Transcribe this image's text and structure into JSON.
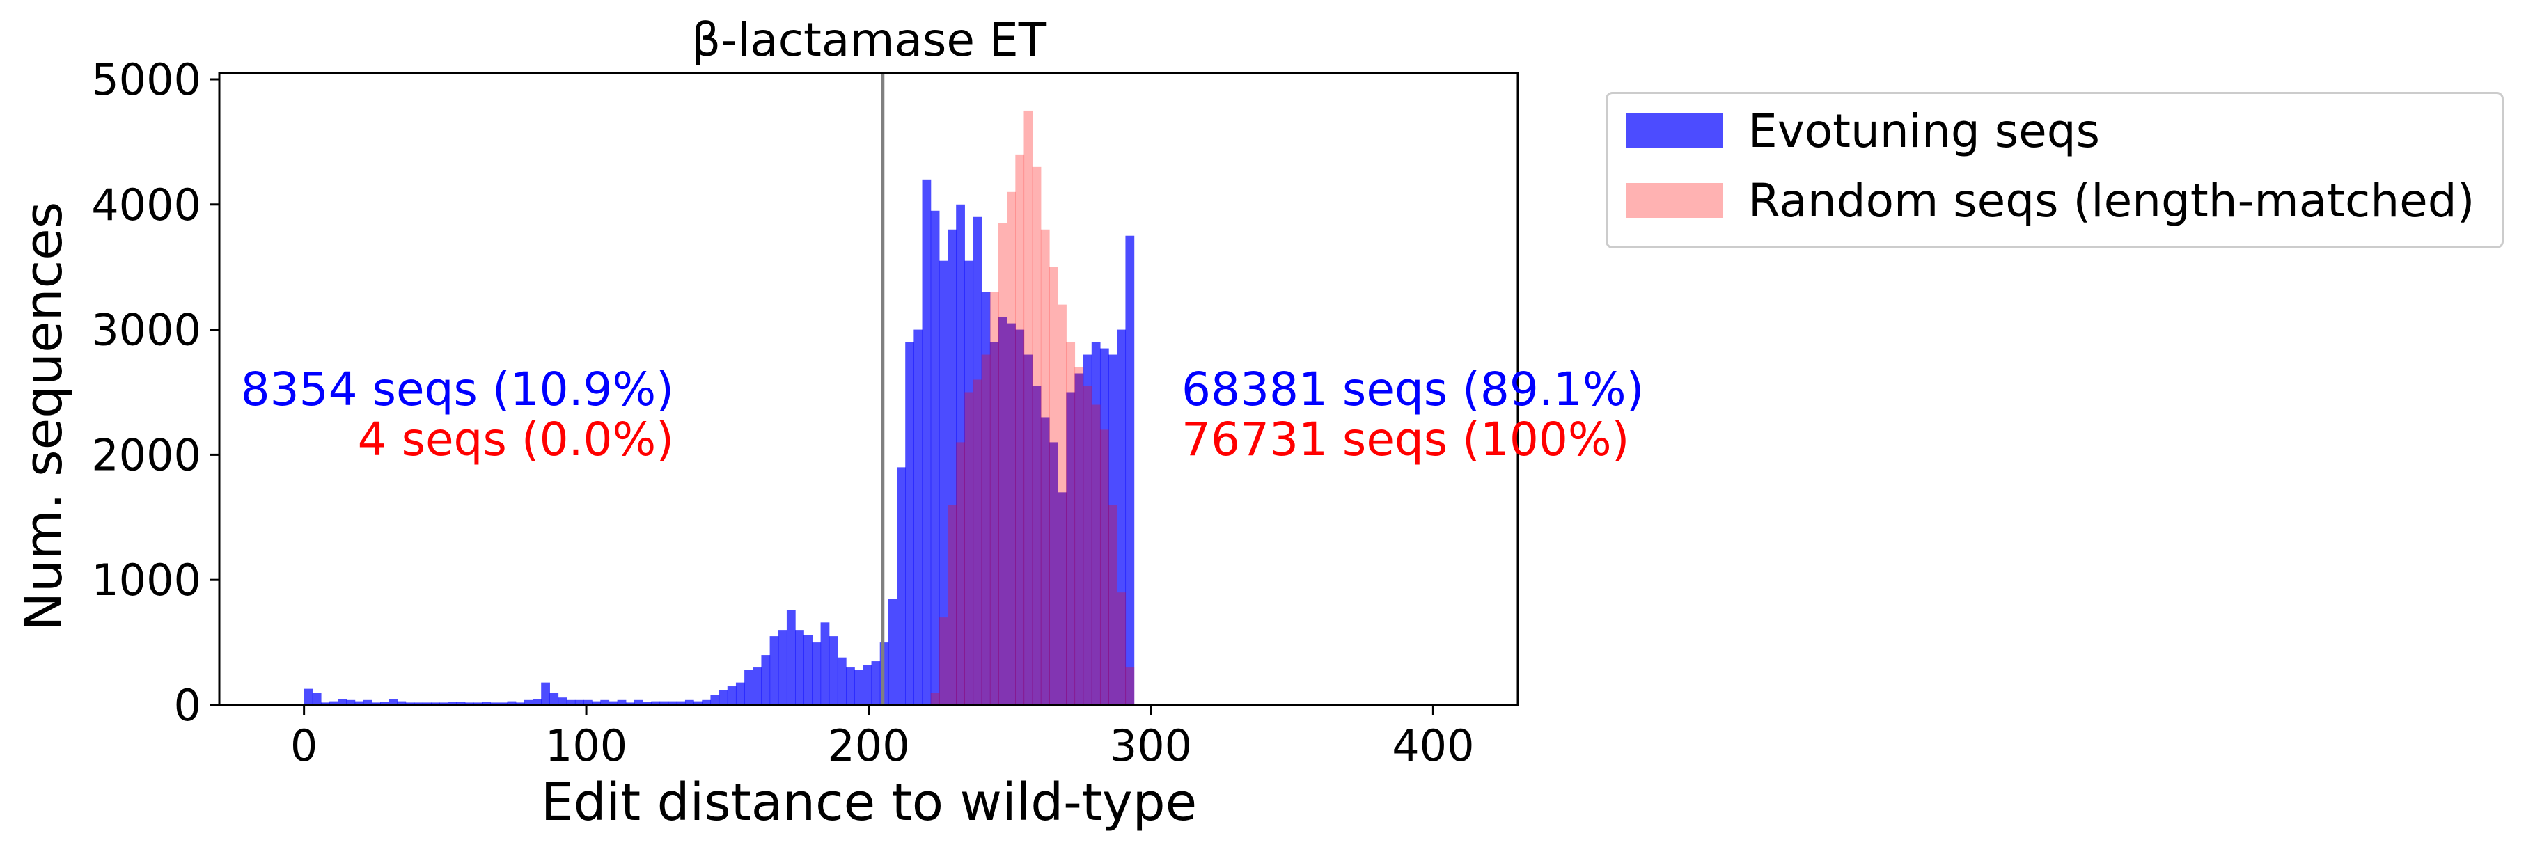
{
  "chart_data": {
    "type": "bar",
    "title": "β-lactamase ET",
    "xlabel": "Edit distance to wild-type",
    "ylabel": "Num. sequences",
    "xlim": [
      -30,
      430
    ],
    "ylim": [
      0,
      5050
    ],
    "x_ticks": [
      0,
      100,
      200,
      300,
      400
    ],
    "y_ticks": [
      0,
      1000,
      2000,
      3000,
      4000,
      5000
    ],
    "x_tick_labels": [
      "0",
      "100",
      "200",
      "300",
      "400"
    ],
    "y_tick_labels": [
      "0",
      "1000",
      "2000",
      "3000",
      "4000",
      "5000"
    ],
    "bin_width": 3,
    "grid": false,
    "legend_position": "outside-right-top",
    "vline_x": 205,
    "series": [
      {
        "name": "Evotuning seqs",
        "color": "#0000ff",
        "opacity": 0.7,
        "bin_start": 0,
        "values": [
          130,
          100,
          20,
          30,
          50,
          40,
          30,
          40,
          20,
          25,
          50,
          30,
          20,
          20,
          20,
          20,
          20,
          25,
          25,
          20,
          20,
          25,
          20,
          20,
          30,
          20,
          40,
          50,
          180,
          100,
          60,
          40,
          40,
          40,
          30,
          40,
          30,
          40,
          20,
          40,
          25,
          30,
          30,
          30,
          30,
          40,
          30,
          40,
          80,
          120,
          150,
          180,
          280,
          300,
          400,
          550,
          600,
          760,
          600,
          560,
          500,
          660,
          550,
          380,
          300,
          280,
          320,
          350,
          500,
          850,
          1900,
          2900,
          3000,
          4200,
          3950,
          3550,
          3800,
          4000,
          3550,
          3900,
          3300,
          2900,
          3100,
          3050,
          3000,
          2800,
          2550,
          2300,
          2100,
          1700,
          2500,
          2650,
          2800,
          2900,
          2850,
          2800,
          3000,
          3750
        ]
      },
      {
        "name": "Random seqs (length-matched)",
        "color": "#ff0000",
        "opacity": 0.3,
        "bin_start": 207,
        "values": [
          0,
          0,
          0,
          0,
          0,
          100,
          700,
          1600,
          2100,
          2500,
          2600,
          2800,
          3300,
          3850,
          4100,
          4400,
          4750,
          4300,
          3800,
          3500,
          3200,
          2900,
          2700,
          2550,
          2400,
          2200,
          1600,
          900,
          300
        ]
      }
    ],
    "annotations_left": [
      {
        "text": "8354 seqs (10.9%)",
        "color": "#0000ff"
      },
      {
        "text": "4 seqs (0.0%)",
        "color": "#ff0000"
      }
    ],
    "annotations_right": [
      {
        "text": "68381 seqs (89.1%)",
        "color": "#0000ff"
      },
      {
        "text": "76731 seqs  (100%)",
        "color": "#ff0000"
      }
    ]
  }
}
